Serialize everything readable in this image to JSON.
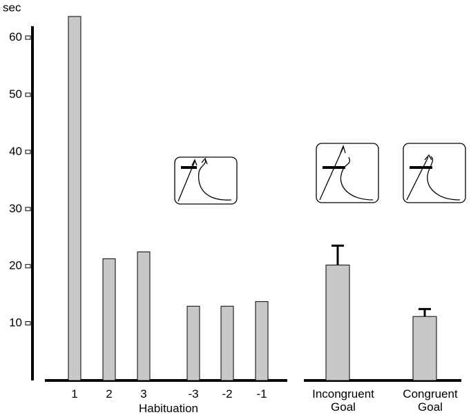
{
  "chart_data": {
    "type": "bar",
    "y_label": "sec",
    "categories": [
      "1",
      "2",
      "3",
      "-3",
      "-2",
      "-1",
      "Incongruent Goal",
      "Congruent Goal"
    ],
    "values": [
      63.7,
      21.3,
      22.5,
      13,
      13,
      13.8,
      20.2,
      11.2
    ],
    "errors": [
      null,
      null,
      null,
      null,
      null,
      null,
      3.4,
      1.3
    ],
    "group_label": "Habituation",
    "ylim": [
      0,
      62
    ],
    "yticks": [
      10,
      20,
      30,
      40,
      50,
      60
    ],
    "color": "#c8c8c8"
  }
}
